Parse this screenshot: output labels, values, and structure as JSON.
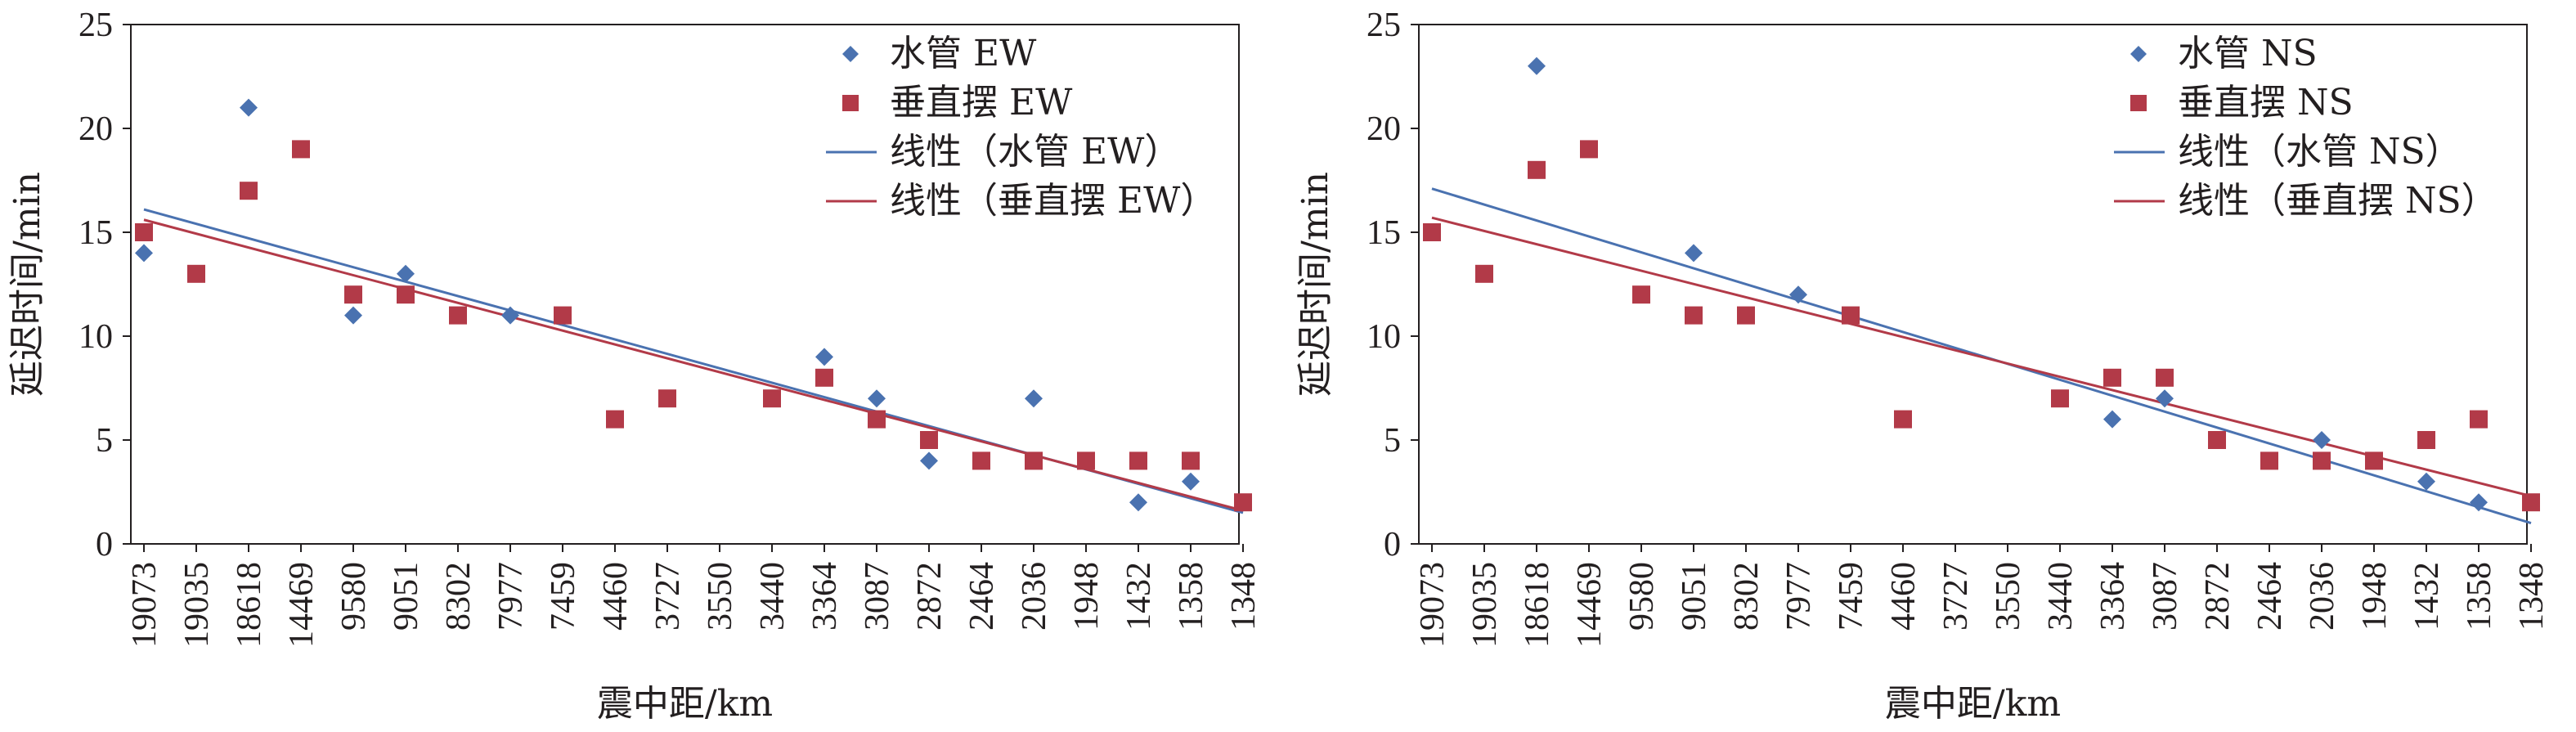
{
  "chart_data": [
    {
      "type": "scatter",
      "xlabel": "震中距/km",
      "ylabel": "延迟时间/min",
      "ylim": [
        0,
        25
      ],
      "yticks": [
        0,
        5,
        10,
        15,
        20,
        25
      ],
      "categories": [
        "19073",
        "19035",
        "18618",
        "14469",
        "9580",
        "9051",
        "8302",
        "7977",
        "7459",
        "4460",
        "3727",
        "3550",
        "3440",
        "3364",
        "3087",
        "2872",
        "2464",
        "2036",
        "1948",
        "1432",
        "1358",
        "1348"
      ],
      "series": [
        {
          "name": "水管 EW",
          "marker": "diamond",
          "color": "#4a72b0",
          "values": [
            14,
            null,
            21,
            null,
            11,
            13,
            null,
            11,
            null,
            null,
            null,
            null,
            null,
            9,
            7,
            4,
            null,
            7,
            null,
            2,
            3,
            null
          ]
        },
        {
          "name": "垂直摆 EW",
          "marker": "square",
          "color": "#b23a48",
          "values": [
            15,
            13,
            17,
            19,
            12,
            12,
            11,
            null,
            11,
            6,
            7,
            null,
            7,
            8,
            6,
            5,
            4,
            4,
            4,
            4,
            4,
            2
          ]
        }
      ],
      "trendlines": [
        {
          "name": "线性（水管 EW）",
          "color": "#4a72b0",
          "start": [
            1,
            16.1
          ],
          "end": [
            22,
            1.5
          ]
        },
        {
          "name": "线性（垂直摆 EW）",
          "color": "#b23a48",
          "start": [
            1,
            15.6
          ],
          "end": [
            22,
            1.6
          ]
        }
      ],
      "legend_position": "top-right",
      "grid": false
    },
    {
      "type": "scatter",
      "xlabel": "震中距/km",
      "ylabel": "延迟时间/min",
      "ylim": [
        0,
        25
      ],
      "yticks": [
        0,
        5,
        10,
        15,
        20,
        25
      ],
      "categories": [
        "19073",
        "19035",
        "18618",
        "14469",
        "9580",
        "9051",
        "8302",
        "7977",
        "7459",
        "4460",
        "3727",
        "3550",
        "3440",
        "3364",
        "3087",
        "2872",
        "2464",
        "2036",
        "1948",
        "1432",
        "1358",
        "1348"
      ],
      "series": [
        {
          "name": "水管 NS",
          "marker": "diamond",
          "color": "#4a72b0",
          "values": [
            null,
            null,
            23,
            null,
            null,
            14,
            null,
            12,
            null,
            null,
            null,
            null,
            null,
            6,
            7,
            null,
            null,
            5,
            null,
            3,
            2,
            null
          ]
        },
        {
          "name": "垂直摆 NS",
          "marker": "square",
          "color": "#b23a48",
          "values": [
            15,
            13,
            18,
            19,
            12,
            11,
            11,
            null,
            11,
            6,
            null,
            null,
            7,
            8,
            8,
            5,
            4,
            4,
            4,
            5,
            6,
            2
          ]
        }
      ],
      "trendlines": [
        {
          "name": "线性（水管 NS）",
          "color": "#4a72b0",
          "start": [
            1,
            17.1
          ],
          "end": [
            22,
            1.0
          ]
        },
        {
          "name": "线性（垂直摆 NS）",
          "color": "#b23a48",
          "start": [
            1,
            15.7
          ],
          "end": [
            22,
            2.3
          ]
        }
      ],
      "legend_position": "top-right",
      "grid": false
    }
  ]
}
